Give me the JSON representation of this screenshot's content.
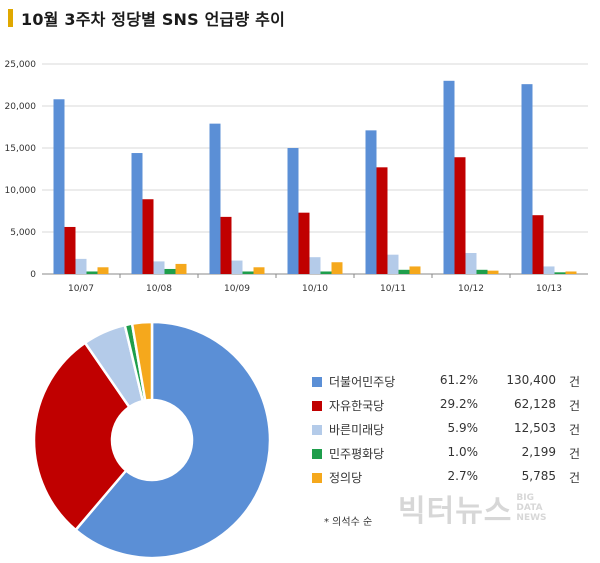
{
  "title": "10월 3주차 정당별 SNS 언급량 추이",
  "colors": {
    "title_bar": "#e0a800",
    "series": [
      "#5b8fd6",
      "#c00000",
      "#b4cbe9",
      "#1e9e4b",
      "#f5a81c"
    ]
  },
  "chart_data": [
    {
      "type": "bar",
      "categories": [
        "10/07",
        "10/08",
        "10/09",
        "10/10",
        "10/11",
        "10/12",
        "10/13"
      ],
      "ylim": [
        0,
        25000
      ],
      "yticks": [
        "0",
        "5,000",
        "10,000",
        "15,000",
        "20,000",
        "25,000"
      ],
      "grid": true,
      "series": [
        {
          "name": "더불어민주당",
          "values": [
            20800,
            14400,
            17900,
            15000,
            17100,
            23000,
            22600
          ]
        },
        {
          "name": "자유한국당",
          "values": [
            5600,
            8900,
            6800,
            7300,
            12700,
            13900,
            7000
          ]
        },
        {
          "name": "바른미래당",
          "values": [
            1800,
            1500,
            1600,
            2000,
            2300,
            2500,
            900
          ]
        },
        {
          "name": "민주평화당",
          "values": [
            300,
            600,
            300,
            300,
            500,
            500,
            200
          ]
        },
        {
          "name": "정의당",
          "values": [
            800,
            1200,
            800,
            1400,
            900,
            400,
            300
          ]
        }
      ]
    },
    {
      "type": "pie",
      "slices": [
        {
          "label": "더불어민주당",
          "percent": 61.2,
          "value": 130400
        },
        {
          "label": "자유한국당",
          "percent": 29.2,
          "value": 62128
        },
        {
          "label": "바른미래당",
          "percent": 5.9,
          "value": 12503
        },
        {
          "label": "민주평화당",
          "percent": 1.0,
          "value": 2199
        },
        {
          "label": "정의당",
          "percent": 2.7,
          "value": 5785
        }
      ]
    }
  ],
  "legend": {
    "rows": [
      {
        "name": "더불어민주당",
        "pct": "61.2%",
        "count": "130,400",
        "unit": "건"
      },
      {
        "name": "자유한국당",
        "pct": "29.2%",
        "count": "62,128",
        "unit": "건"
      },
      {
        "name": "바른미래당",
        "pct": "5.9%",
        "count": "12,503",
        "unit": "건"
      },
      {
        "name": "민주평화당",
        "pct": "1.0%",
        "count": "2,199",
        "unit": "건"
      },
      {
        "name": "정의당",
        "pct": "2.7%",
        "count": "5,785",
        "unit": "건"
      }
    ]
  },
  "note": "* 의석수 순",
  "watermark": {
    "main": "빅터뉴스",
    "side": [
      "BIG",
      "DATA",
      "NEWS"
    ]
  }
}
